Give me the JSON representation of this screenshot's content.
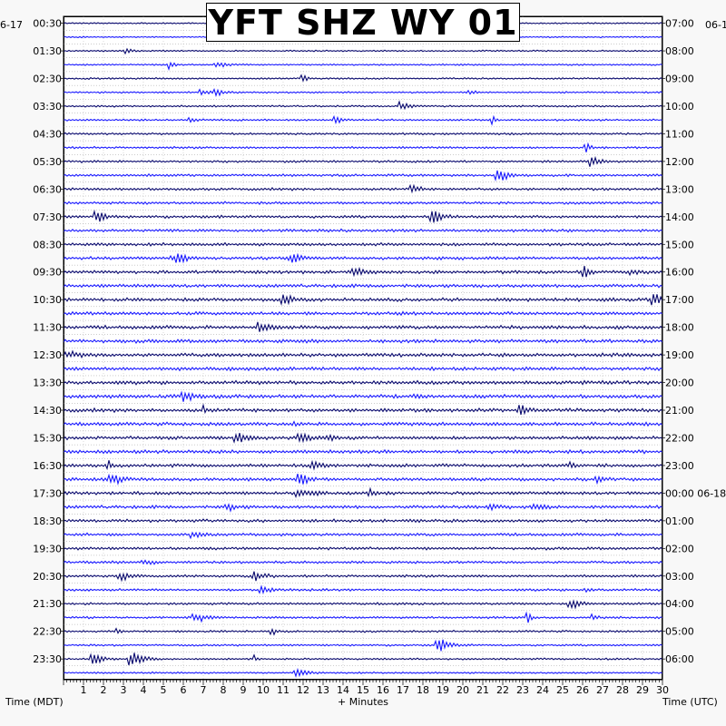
{
  "title": "YFT SHZ WY 01",
  "date_left": "6-17",
  "date_right": "06-1",
  "colors": {
    "trace_a": "#0a0a6e",
    "trace_b": "#1a1aff",
    "background": "#ffffff",
    "page": "#f8f8f8"
  },
  "chart_data": {
    "type": "helicorder",
    "title": "YFT SHZ WY 01",
    "xlabel": "+ Minutes",
    "ylabel_left": "Time (MDT)",
    "ylabel_right": "Time (UTC)",
    "xlim": [
      0,
      30
    ],
    "x_ticks": [
      "1",
      "2",
      "3",
      "4",
      "5",
      "6",
      "7",
      "8",
      "9",
      "10",
      "11",
      "12",
      "13",
      "14",
      "15",
      "16",
      "17",
      "18",
      "19",
      "20",
      "21",
      "22",
      "23",
      "24",
      "25",
      "26",
      "27",
      "28",
      "29",
      "30"
    ],
    "row_count": 48,
    "minutes_per_row": 30,
    "left_time_labels": [
      "00:30",
      "01:30",
      "02:30",
      "03:30",
      "04:30",
      "05:30",
      "06:30",
      "07:30",
      "08:30",
      "09:30",
      "10:30",
      "11:30",
      "12:30",
      "13:30",
      "14:30",
      "15:30",
      "16:30",
      "17:30",
      "18:30",
      "19:30",
      "20:30",
      "21:30",
      "22:30",
      "23:30"
    ],
    "right_time_labels": [
      "07:00",
      "08:00",
      "09:00",
      "10:00",
      "11:00",
      "12:00",
      "13:00",
      "14:00",
      "15:00",
      "16:00",
      "17:00",
      "18:00",
      "19:00",
      "20:00",
      "21:00",
      "22:00",
      "23:00",
      "00:00 06-18",
      "01:00",
      "02:00",
      "03:00",
      "04:00",
      "05:00",
      "06:00"
    ],
    "trace_colors": [
      "#0a0a6e",
      "#1a1aff"
    ],
    "grid": "dotted"
  }
}
